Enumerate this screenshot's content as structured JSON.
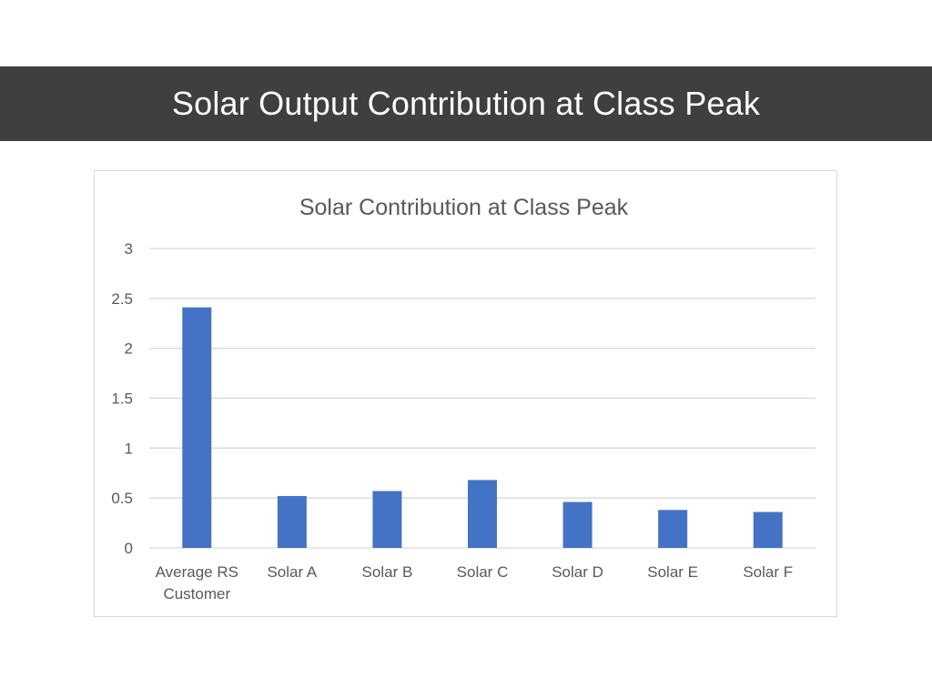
{
  "slide": {
    "title": "Solar Output Contribution at Class Peak"
  },
  "colors": {
    "title_bar_background": "#3f3f3f",
    "title_text": "#ffffff",
    "bar_fill": "#4472c4",
    "gridline": "#d9d9d9",
    "axis_text": "#595959"
  },
  "chart_data": {
    "type": "bar",
    "title": "Solar Contribution at Class Peak",
    "xlabel": "",
    "ylabel": "",
    "categories": [
      [
        "Average RS",
        "Customer"
      ],
      [
        "Solar A"
      ],
      [
        "Solar B"
      ],
      [
        "Solar C"
      ],
      [
        "Solar D"
      ],
      [
        "Solar E"
      ],
      [
        "Solar F"
      ]
    ],
    "values": [
      2.41,
      0.52,
      0.57,
      0.68,
      0.46,
      0.38,
      0.36
    ],
    "ylim": [
      0,
      3
    ],
    "yticks": [
      0,
      0.5,
      1,
      1.5,
      2,
      2.5,
      3
    ],
    "ytick_labels": [
      "0",
      "0.5",
      "1",
      "1.5",
      "2",
      "2.5",
      "3"
    ],
    "grid": true,
    "legend": "none"
  }
}
